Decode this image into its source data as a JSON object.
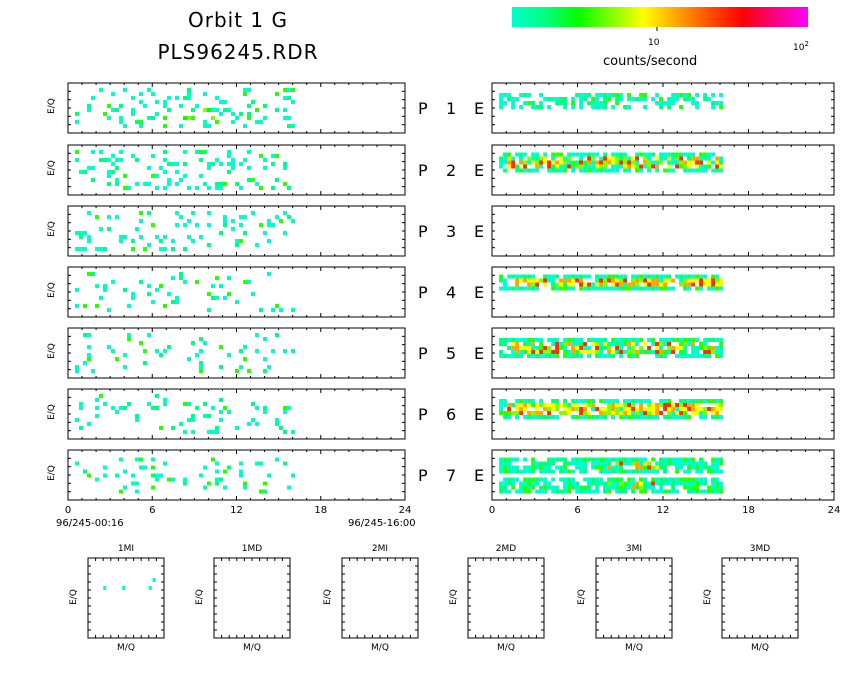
{
  "header": {
    "title_line1": "Orbit 1 G",
    "title_line2": "PLS96245.RDR"
  },
  "colorbar": {
    "label": "counts/second",
    "tick_10": "10",
    "tick_100_base": "10",
    "tick_100_exp": "2",
    "colors": [
      "#00ffc8",
      "#00ff7f",
      "#00ff00",
      "#7fff00",
      "#ffff00",
      "#ffa500",
      "#ff5000",
      "#ff0000",
      "#ff0080",
      "#ff00ff"
    ]
  },
  "rows": [
    {
      "p": "P",
      "n": "1",
      "e": "E"
    },
    {
      "p": "P",
      "n": "2",
      "e": "E"
    },
    {
      "p": "P",
      "n": "3",
      "e": "E"
    },
    {
      "p": "P",
      "n": "4",
      "e": "E"
    },
    {
      "p": "P",
      "n": "5",
      "e": "E"
    },
    {
      "p": "P",
      "n": "6",
      "e": "E"
    },
    {
      "p": "P",
      "n": "7",
      "e": "E"
    }
  ],
  "axes": {
    "ylabel": "E/Q",
    "x_ticks": [
      "0",
      "6",
      "12",
      "18",
      "24"
    ],
    "time_start": "96/245-00:16",
    "time_end": "96/245-16:00"
  },
  "mass_panels": {
    "titles": [
      "1MI",
      "1MD",
      "2MI",
      "2MD",
      "3MI",
      "3MD"
    ],
    "xlabel": "M/Q",
    "ylabel": "E/Q"
  },
  "chart_data": {
    "type": "heatmap",
    "x_range_hours": [
      0,
      24
    ],
    "data_extent_hours": [
      0,
      16
    ],
    "color_scale": "log counts/second, 1 to 100",
    "left_panels": [
      {
        "row": "1",
        "fill": 0.45,
        "hot": [
          [
            8,
            11,
            0.55
          ]
        ],
        "bands": [
          [
            0.1,
            0.9
          ]
        ]
      },
      {
        "row": "2",
        "fill": 0.35,
        "hot": [],
        "bands": [
          [
            0.1,
            0.9
          ]
        ]
      },
      {
        "row": "3",
        "fill": 0.32,
        "hot": [],
        "bands": [
          [
            0.1,
            0.9
          ]
        ]
      },
      {
        "row": "4",
        "fill": 0.22,
        "hot": [],
        "bands": [
          [
            0.1,
            0.9
          ]
        ]
      },
      {
        "row": "5",
        "fill": 0.18,
        "hot": [],
        "bands": [
          [
            0.1,
            0.9
          ]
        ]
      },
      {
        "row": "6",
        "fill": 0.25,
        "hot": [],
        "bands": [
          [
            0.1,
            0.9
          ]
        ]
      },
      {
        "row": "7",
        "fill": 0.38,
        "hot": [],
        "bands": [
          [
            0.15,
            0.85
          ]
        ]
      }
    ],
    "right_panels": [
      {
        "row": "1",
        "fill": 0.6,
        "hot": [],
        "bands": [
          [
            0.2,
            0.45
          ]
        ]
      },
      {
        "row": "2",
        "fill": 0.95,
        "hot": [
          [
            1,
            16,
            0.65
          ]
        ],
        "bands": [
          [
            0.15,
            0.5
          ]
        ]
      },
      {
        "row": "3",
        "fill": 0,
        "hot": [],
        "bands": []
      },
      {
        "row": "4",
        "fill": 0.95,
        "hot": [
          [
            1,
            16,
            0.9
          ]
        ],
        "bands": [
          [
            0.15,
            0.45
          ]
        ]
      },
      {
        "row": "5",
        "fill": 0.95,
        "hot": [
          [
            1,
            16,
            0.55
          ]
        ],
        "bands": [
          [
            0.2,
            0.55
          ]
        ]
      },
      {
        "row": "6",
        "fill": 0.95,
        "hot": [
          [
            1,
            16,
            0.9
          ]
        ],
        "bands": [
          [
            0.2,
            0.55
          ]
        ]
      },
      {
        "row": "7",
        "fill": 0.95,
        "hot": [
          [
            8,
            12,
            0.35
          ]
        ],
        "bands": [
          [
            0.15,
            0.4
          ],
          [
            0.55,
            0.8
          ]
        ]
      }
    ],
    "mass_1MI_points": [
      [
        0.2,
        0.35
      ],
      [
        0.45,
        0.35
      ],
      [
        0.8,
        0.35
      ],
      [
        0.85,
        0.25
      ]
    ]
  }
}
